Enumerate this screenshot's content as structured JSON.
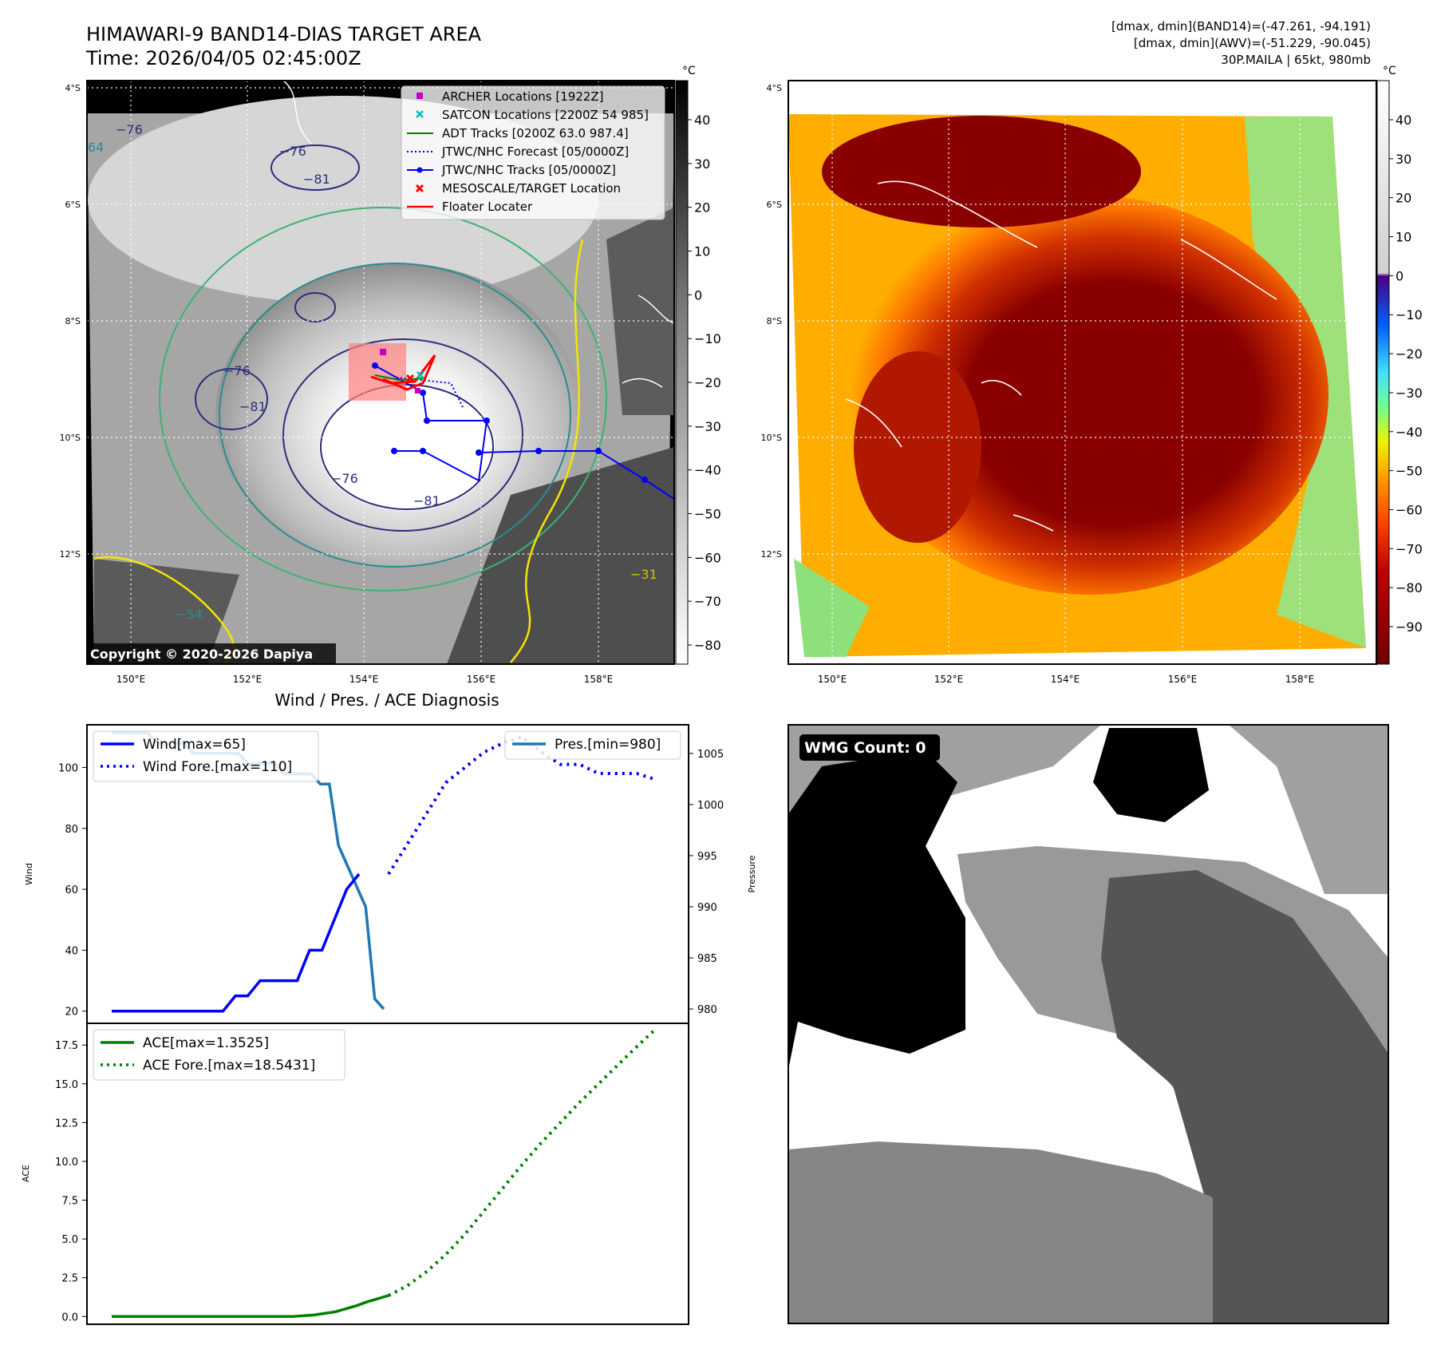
{
  "header": {
    "title": "HIMAWARI-9 BAND14-DIAS TARGET AREA",
    "time": "Time: 2026/04/05 02:45:00Z",
    "band14_range": "[dmax, dmin](BAND14)=(-47.261, -94.191)",
    "awv_range": "[dmax, dmin](AWV)=(-51.229, -90.045)",
    "storm_info": "30P.MAILA | 65kt, 980mb"
  },
  "map": {
    "lat_labels": [
      "4°S",
      "6°S",
      "8°S",
      "10°S",
      "12°S"
    ],
    "lon_labels": [
      "150°E",
      "152°E",
      "154°E",
      "156°E",
      "158°E"
    ],
    "copyright": "Copyright © 2020-2026 Dapiya",
    "contour_labels": [
      "−76",
      "−81",
      "−76",
      "−81",
      "−76",
      "−76",
      "−81",
      "−54",
      "−31",
      "64"
    ],
    "legend": [
      {
        "label": "ARCHER Locations [1922Z]",
        "color": "#c000c0",
        "marker": "square"
      },
      {
        "label": "SATCON Locations [2200Z 54 985]",
        "color": "#00bfbf",
        "marker": "x"
      },
      {
        "label": "ADT Tracks [0200Z 63.0 987.4]",
        "color": "#008000",
        "marker": "line"
      },
      {
        "label": "JTWC/NHC Forecast [05/0000Z]",
        "color": "#0000ff",
        "marker": "dotted"
      },
      {
        "label": "JTWC/NHC Tracks [05/0000Z]",
        "color": "#0000ff",
        "marker": "line-dot"
      },
      {
        "label": "MESOSCALE/TARGET Location",
        "color": "#ff0000",
        "marker": "x"
      },
      {
        "label": "Floater Locater",
        "color": "#ff0000",
        "marker": "line"
      }
    ],
    "colorbar_unit": "°C",
    "colorbar_gray_ticks": [
      "40",
      "30",
      "20",
      "10",
      "0",
      "−10",
      "−20",
      "−30",
      "−40",
      "−50",
      "−60",
      "−70",
      "−80"
    ],
    "colorbar_color_ticks": [
      "40",
      "30",
      "20",
      "10",
      "0",
      "−10",
      "−20",
      "−30",
      "−40",
      "−50",
      "−60",
      "−70",
      "−80",
      "−90"
    ]
  },
  "diagnosis": {
    "title": "Wind / Pres. / ACE Diagnosis",
    "wind_ylabel": "Wind",
    "pres_ylabel": "Pressure",
    "ace_ylabel": "ACE",
    "wind_legend": [
      "Wind[max=65]",
      "Wind Fore.[max=110]"
    ],
    "pres_legend": "Pres.[min=980]",
    "ace_legend": [
      "ACE[max=1.3525]",
      "ACE Fore.[max=18.5431]"
    ],
    "wmg": "WMG Count: 0"
  },
  "chart_data": [
    {
      "type": "line",
      "title": "Wind / Pres. / ACE Diagnosis",
      "ylabel": "Wind",
      "y2label": "Pressure",
      "ylim": [
        16,
        114
      ],
      "y2lim": [
        978.6,
        1007.8
      ],
      "yticks": [
        20,
        40,
        60,
        80,
        100
      ],
      "y2ticks": [
        980,
        985,
        990,
        995,
        1000,
        1005
      ],
      "series": [
        {
          "name": "Wind[max=65]",
          "style": "solid",
          "color": "#0000ff",
          "values": [
            20,
            20,
            20,
            20,
            20,
            20,
            20,
            20,
            20,
            20,
            25,
            25,
            30,
            30,
            30,
            30,
            40,
            40,
            50,
            60,
            65
          ]
        },
        {
          "name": "Wind Fore.[max=110]",
          "style": "dotted",
          "color": "#0000ff",
          "values": [
            65,
            75,
            85,
            95,
            100,
            105,
            108,
            110,
            105,
            101,
            101,
            98,
            98,
            98,
            96
          ]
        },
        {
          "name": "Pres.[min=980]",
          "style": "solid",
          "color": "#1f77b4",
          "values": [
            1007,
            1007,
            1007,
            1007,
            1007,
            1006,
            1006,
            1006,
            1006,
            1005,
            1005,
            1005,
            1005,
            1005,
            1005,
            1004,
            1004,
            1004,
            1004,
            1003,
            1003,
            1003,
            1003,
            1002,
            1002,
            996,
            994,
            992,
            990,
            981,
            980
          ]
        }
      ]
    },
    {
      "type": "line",
      "ylabel": "ACE",
      "ylim": [
        -0.5,
        18.9
      ],
      "yticks": [
        0.0,
        2.5,
        5.0,
        7.5,
        10.0,
        12.5,
        15.0,
        17.5
      ],
      "series": [
        {
          "name": "ACE[max=1.3525]",
          "style": "solid",
          "color": "#008000",
          "values": [
            0,
            0,
            0,
            0,
            0,
            0,
            0,
            0,
            0,
            0,
            0,
            0,
            0,
            0,
            0,
            0,
            0,
            0,
            0.05,
            0.1,
            0.2,
            0.3,
            0.5,
            0.7,
            0.95,
            1.15,
            1.3525
          ]
        },
        {
          "name": "ACE Fore.[max=18.5431]",
          "style": "dotted",
          "color": "#008000",
          "values": [
            1.35,
            2.0,
            2.9,
            4.0,
            5.3,
            6.8,
            8.3,
            9.8,
            11.2,
            12.5,
            13.8,
            15.0,
            16.2,
            17.4,
            18.5431
          ]
        }
      ]
    }
  ]
}
